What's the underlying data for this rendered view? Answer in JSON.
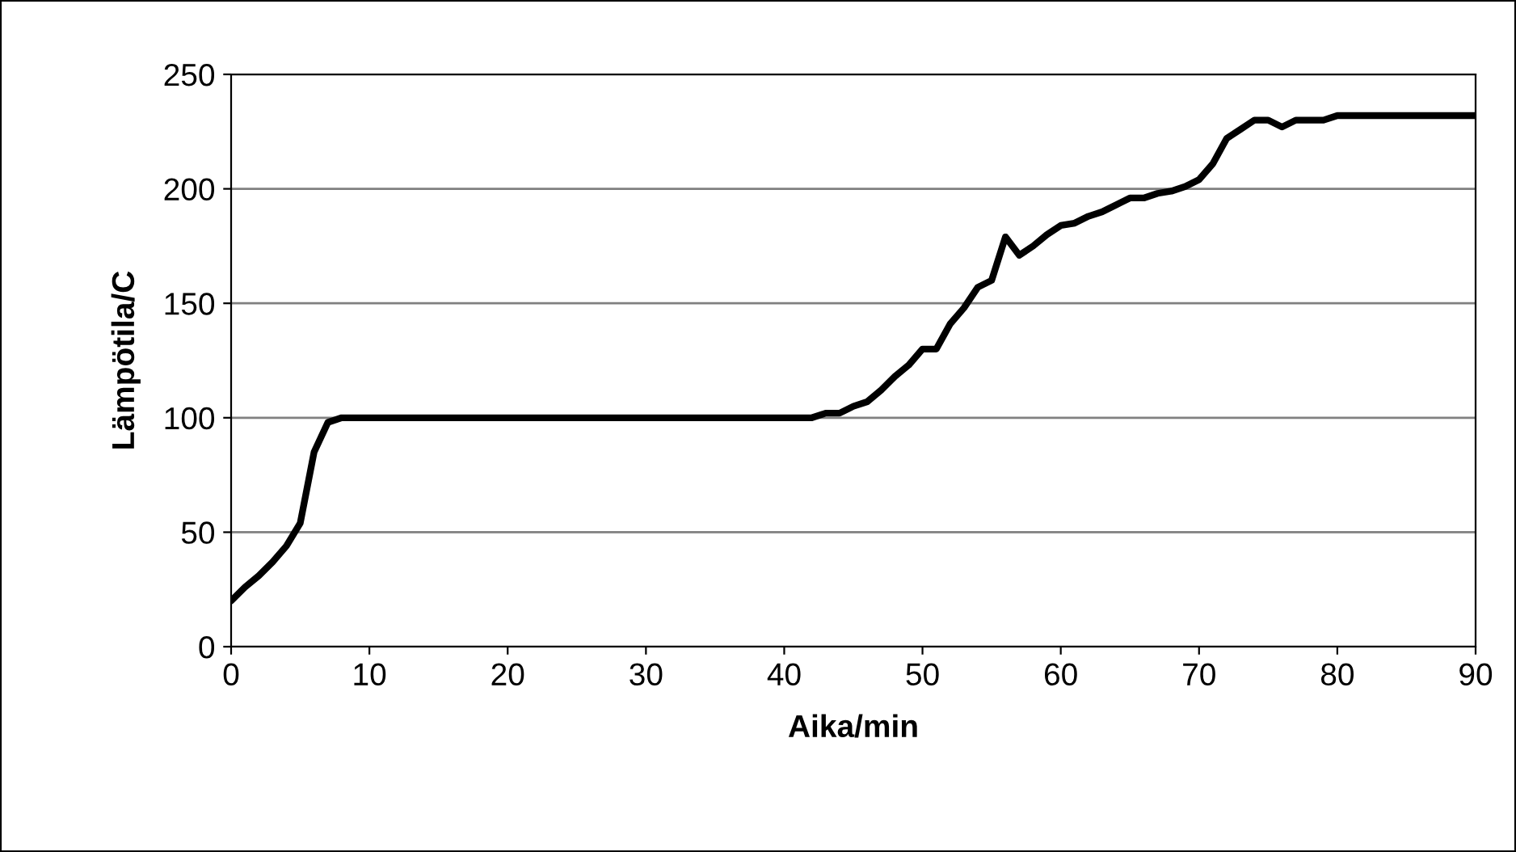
{
  "chart_data": {
    "type": "line",
    "xlabel": "Aika/min",
    "ylabel": "Lämpötila/C",
    "x": [
      0,
      1,
      2,
      3,
      4,
      5,
      6,
      7,
      8,
      42,
      43,
      44,
      45,
      46,
      47,
      48,
      49,
      50,
      51,
      52,
      53,
      54,
      55,
      56,
      57,
      58,
      59,
      60,
      61,
      62,
      63,
      64,
      65,
      66,
      67,
      68,
      69,
      70,
      71,
      72,
      73,
      74,
      75,
      76,
      77,
      78,
      79,
      80,
      90
    ],
    "series": [
      {
        "color": "#000000",
        "values": [
          20,
          26,
          31,
          37,
          44,
          54,
          85,
          98,
          100,
          100,
          102,
          102,
          105,
          107,
          112,
          118,
          123,
          130,
          130,
          141,
          148,
          157,
          160,
          179,
          171,
          175,
          180,
          184,
          185,
          188,
          190,
          193,
          196,
          196,
          198,
          199,
          201,
          204,
          211,
          222,
          226,
          230,
          230,
          227,
          230,
          230,
          230,
          232,
          232
        ]
      }
    ],
    "xlim": [
      0,
      90
    ],
    "xticks": [
      0,
      10,
      20,
      30,
      40,
      50,
      60,
      70,
      80,
      90
    ],
    "ylim": [
      0,
      250
    ],
    "yticks": [
      0,
      50,
      100,
      150,
      200,
      250
    ],
    "grid": "y",
    "marker": "none",
    "line_style": "solid",
    "legend": false
  }
}
